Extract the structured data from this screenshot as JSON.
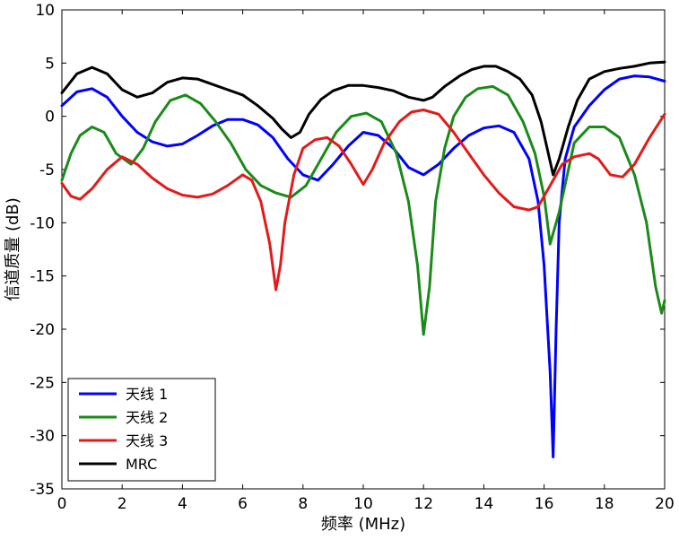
{
  "chart_data": {
    "type": "line",
    "xlabel": "频率 (MHz)",
    "ylabel": "信道质量 (dB)",
    "xlim": [
      0,
      20
    ],
    "ylim": [
      -35,
      10
    ],
    "xticks": [
      0,
      2,
      4,
      6,
      8,
      10,
      12,
      14,
      16,
      18,
      20
    ],
    "yticks": [
      10,
      5,
      0,
      -5,
      -10,
      -15,
      -20,
      -25,
      -30,
      -35
    ],
    "grid": false,
    "legend_position": "bottom-left",
    "series": [
      {
        "name": "天线 1",
        "color": "#0000ff",
        "x": [
          0,
          0.5,
          1.0,
          1.5,
          2.0,
          2.5,
          3.0,
          3.5,
          4.0,
          4.5,
          5.0,
          5.5,
          6.0,
          6.5,
          7.0,
          7.5,
          8.0,
          8.5,
          9.0,
          9.5,
          10.0,
          10.5,
          11.0,
          11.5,
          12.0,
          12.5,
          13.0,
          13.5,
          14.0,
          14.5,
          15.0,
          15.5,
          15.8,
          16.0,
          16.2,
          16.3,
          16.4,
          16.5,
          16.7,
          17.0,
          17.5,
          18.0,
          18.5,
          19.0,
          19.5,
          20.0
        ],
        "y": [
          1.0,
          2.3,
          2.6,
          1.8,
          0,
          -1.5,
          -2.4,
          -2.8,
          -2.6,
          -1.8,
          -0.9,
          -0.3,
          -0.3,
          -0.8,
          -2.0,
          -4.0,
          -5.5,
          -6.0,
          -4.5,
          -2.8,
          -1.5,
          -1.8,
          -3.0,
          -4.8,
          -5.5,
          -4.5,
          -3.0,
          -1.8,
          -1.1,
          -0.9,
          -1.5,
          -4.0,
          -8.0,
          -14.0,
          -24.0,
          -32.0,
          -20.0,
          -10.0,
          -4.0,
          -1.0,
          1.0,
          2.5,
          3.5,
          3.8,
          3.7,
          3.3
        ]
      },
      {
        "name": "天线 2",
        "color": "#1a8a1a",
        "x": [
          0,
          0.3,
          0.6,
          1.0,
          1.4,
          1.8,
          2.3,
          2.7,
          3.1,
          3.6,
          4.1,
          4.6,
          5.1,
          5.6,
          6.1,
          6.6,
          7.1,
          7.6,
          8.1,
          8.6,
          9.1,
          9.6,
          10.1,
          10.6,
          11.1,
          11.5,
          11.8,
          12.0,
          12.2,
          12.4,
          12.7,
          13.0,
          13.4,
          13.8,
          14.3,
          14.8,
          15.3,
          15.7,
          16.0,
          16.2,
          16.5,
          17.0,
          17.5,
          18.0,
          18.5,
          19.0,
          19.4,
          19.7,
          19.9,
          20.0
        ],
        "y": [
          -6.0,
          -3.5,
          -1.8,
          -1.0,
          -1.5,
          -3.5,
          -4.5,
          -3.0,
          -0.5,
          1.5,
          2.0,
          1.2,
          -0.5,
          -2.5,
          -5.0,
          -6.5,
          -7.2,
          -7.6,
          -6.5,
          -4.0,
          -1.5,
          0,
          0.3,
          -0.5,
          -3.5,
          -8.0,
          -14.0,
          -20.5,
          -16.0,
          -8.0,
          -3.0,
          0,
          1.8,
          2.6,
          2.8,
          2.0,
          -0.5,
          -3.5,
          -7.5,
          -12.0,
          -9.0,
          -2.5,
          -1.0,
          -1.0,
          -2.0,
          -5.5,
          -10.0,
          -16.0,
          -18.5,
          -17.3
        ]
      },
      {
        "name": "天线 3",
        "color": "#e31a1a",
        "x": [
          0,
          0.3,
          0.6,
          1.0,
          1.5,
          2.0,
          2.5,
          3.0,
          3.5,
          4.0,
          4.5,
          5.0,
          5.5,
          6.0,
          6.3,
          6.6,
          6.9,
          7.1,
          7.25,
          7.4,
          7.7,
          8.0,
          8.4,
          8.8,
          9.2,
          9.6,
          10.0,
          10.3,
          10.7,
          11.2,
          11.6,
          12.0,
          12.5,
          13.0,
          13.5,
          14.0,
          14.5,
          15.0,
          15.5,
          15.8,
          16.0,
          16.3,
          16.6,
          17.0,
          17.5,
          17.8,
          18.2,
          18.6,
          19.0,
          19.5,
          20.0
        ],
        "y": [
          -6.3,
          -7.5,
          -7.8,
          -6.8,
          -5.0,
          -3.8,
          -4.5,
          -5.8,
          -6.8,
          -7.4,
          -7.6,
          -7.3,
          -6.5,
          -5.5,
          -6.0,
          -8.0,
          -12.0,
          -16.3,
          -14.0,
          -10.0,
          -5.5,
          -3.0,
          -2.2,
          -2.0,
          -2.8,
          -4.5,
          -6.4,
          -5.0,
          -2.5,
          -0.5,
          0.4,
          0.6,
          0.2,
          -1.5,
          -3.5,
          -5.5,
          -7.2,
          -8.5,
          -8.8,
          -8.5,
          -7.5,
          -6.0,
          -4.5,
          -3.8,
          -3.5,
          -4.0,
          -5.5,
          -5.7,
          -4.5,
          -2.0,
          0.2
        ]
      },
      {
        "name": "MRC",
        "color": "#000000",
        "x": [
          0,
          0.5,
          1.0,
          1.5,
          2.0,
          2.5,
          3.0,
          3.5,
          4.0,
          4.5,
          5.0,
          5.5,
          6.0,
          6.5,
          7.0,
          7.3,
          7.6,
          7.9,
          8.2,
          8.6,
          9.0,
          9.5,
          10.0,
          10.5,
          11.0,
          11.5,
          12.0,
          12.3,
          12.7,
          13.2,
          13.6,
          14.0,
          14.4,
          14.8,
          15.2,
          15.6,
          15.9,
          16.1,
          16.3,
          16.5,
          16.8,
          17.1,
          17.5,
          18.0,
          18.5,
          19.0,
          19.5,
          20.0
        ],
        "y": [
          2.2,
          4.0,
          4.6,
          4.0,
          2.5,
          1.8,
          2.2,
          3.2,
          3.6,
          3.5,
          3.0,
          2.5,
          2.0,
          1.0,
          -0.2,
          -1.2,
          -2.0,
          -1.5,
          0.2,
          1.6,
          2.4,
          2.9,
          2.9,
          2.7,
          2.4,
          1.8,
          1.5,
          1.8,
          2.8,
          3.8,
          4.4,
          4.7,
          4.7,
          4.2,
          3.5,
          2.0,
          -0.5,
          -3.0,
          -5.5,
          -4.0,
          -1.0,
          1.5,
          3.5,
          4.2,
          4.5,
          4.7,
          5.0,
          5.1
        ]
      }
    ]
  }
}
